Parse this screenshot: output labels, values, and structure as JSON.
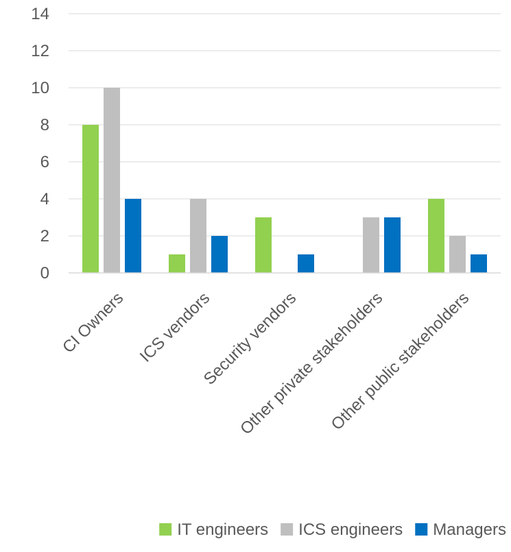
{
  "chart_data": {
    "type": "bar",
    "categories": [
      "CI Owners",
      "ICS vendors",
      "Security vendors",
      "Other private stakeholders",
      "Other public stakeholders"
    ],
    "series": [
      {
        "name": "IT engineers",
        "color": "#92d050",
        "values": [
          8,
          1,
          3,
          0,
          4
        ]
      },
      {
        "name": "ICS engineers",
        "color": "#bfbfbf",
        "values": [
          10,
          4,
          0,
          3,
          2
        ]
      },
      {
        "name": "Managers",
        "color": "#0070c0",
        "values": [
          4,
          2,
          1,
          3,
          1
        ]
      }
    ],
    "yticks": [
      "0",
      "2",
      "4",
      "6",
      "8",
      "10",
      "12",
      "14"
    ],
    "ylim": [
      0,
      14
    ],
    "grid": true,
    "legend_position": "bottom",
    "title": "",
    "xlabel": "",
    "ylabel": ""
  }
}
